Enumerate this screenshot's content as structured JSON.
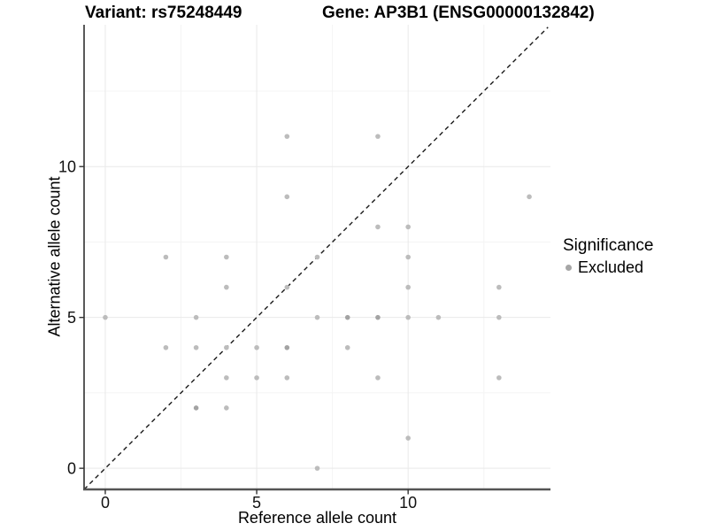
{
  "figure": {
    "title_left": "Variant: rs75248449",
    "title_right": "Gene: AP3B1 (ENSG00000132842)"
  },
  "axes": {
    "x_label": "Reference allele count",
    "y_label": "Alternative allele count"
  },
  "legend": {
    "title": "Significance",
    "items": [
      {
        "label": "Excluded",
        "color": "#a6a6a6"
      }
    ]
  },
  "colors": {
    "background": "#ffffff",
    "grid_major": "#e9e9e9",
    "grid_minor": "#f4f4f4",
    "axis_line_left": "#222222",
    "axis_line_bottom": "#555555",
    "tick_mark": "#333333",
    "tick_label": "#111111",
    "identity_line": "#1a1a1a",
    "point": "#bcbcbc",
    "point_overlap": "#a3a3a3"
  },
  "chart_data": {
    "type": "scatter",
    "title": "Variant: rs75248449   |   Gene: AP3B1 (ENSG00000132842)",
    "xlabel": "Reference allele count",
    "ylabel": "Alternative allele count",
    "xlim": [
      -0.7,
      14.7
    ],
    "ylim": [
      -0.7,
      14.7
    ],
    "x_breaks": [
      0,
      5,
      10
    ],
    "y_breaks": [
      0,
      5,
      10
    ],
    "minor_breaks": [
      2.5,
      7.5,
      12.5
    ],
    "grid": "major+minor",
    "legend_position": "right",
    "reference_line": {
      "type": "identity y=x",
      "style": "dashed"
    },
    "series": [
      {
        "name": "Excluded",
        "points": [
          [
            0,
            5
          ],
          [
            2,
            4
          ],
          [
            2,
            7
          ],
          [
            3,
            2
          ],
          [
            3,
            4
          ],
          [
            3,
            5
          ],
          [
            4,
            2
          ],
          [
            4,
            3
          ],
          [
            4,
            4
          ],
          [
            4,
            6
          ],
          [
            4,
            7
          ],
          [
            5,
            3
          ],
          [
            5,
            4
          ],
          [
            6,
            3
          ],
          [
            6,
            4
          ],
          [
            6,
            6
          ],
          [
            6,
            9
          ],
          [
            6,
            11
          ],
          [
            7,
            0
          ],
          [
            7,
            5
          ],
          [
            7,
            7
          ],
          [
            8,
            4
          ],
          [
            8,
            5
          ],
          [
            9,
            3
          ],
          [
            9,
            5
          ],
          [
            9,
            8
          ],
          [
            9,
            11
          ],
          [
            10,
            1
          ],
          [
            10,
            5
          ],
          [
            10,
            6
          ],
          [
            10,
            7
          ],
          [
            10,
            8
          ],
          [
            11,
            5
          ],
          [
            13,
            3
          ],
          [
            13,
            5
          ],
          [
            13,
            6
          ],
          [
            14,
            9
          ]
        ],
        "darker_overlap_points": [
          [
            3,
            2
          ],
          [
            6,
            4
          ],
          [
            8,
            5
          ],
          [
            9,
            5
          ]
        ]
      }
    ]
  }
}
